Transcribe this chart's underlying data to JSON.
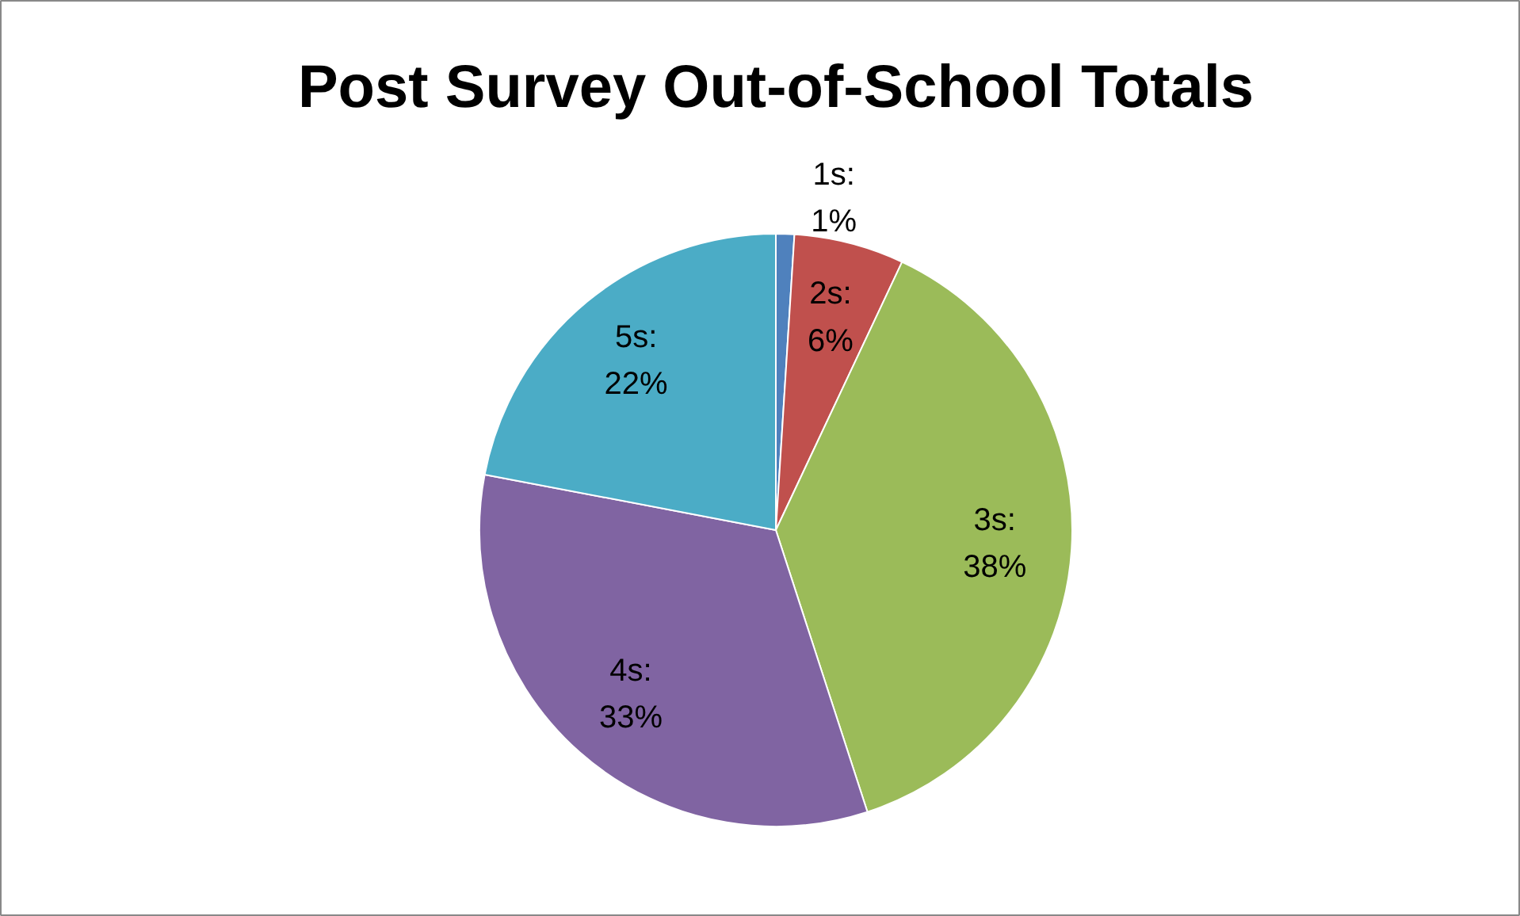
{
  "chart_data": {
    "type": "pie",
    "title": "Post Survey Out-of-School Totals",
    "values": [
      1,
      6,
      38,
      33,
      22
    ],
    "value_labels": [
      "1s: 1%",
      "2s: 6%",
      "3s: 38%",
      "4s: 33%",
      "5s: 22%"
    ],
    "colors": [
      "#4f81bd",
      "#c0504d",
      "#9bbb59",
      "#8064a2",
      "#4bacc6"
    ]
  }
}
